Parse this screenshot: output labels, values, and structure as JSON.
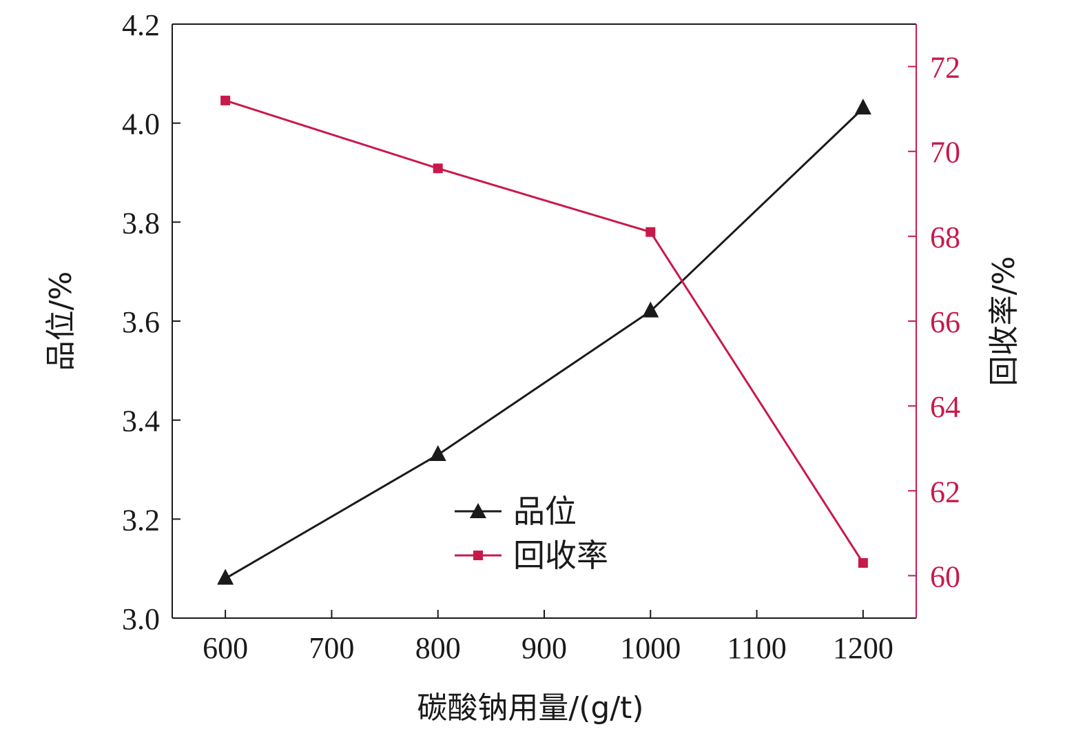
{
  "chart_data": {
    "type": "line",
    "xlabel": "碳酸钠用量/(g/t)",
    "ylabel_left": "品位/%",
    "ylabel_right": "回收率/%",
    "x_ticks": [
      600,
      700,
      800,
      900,
      1000,
      1100,
      1200
    ],
    "xlim": [
      550,
      1250
    ],
    "y_left_ticks": [
      "3.0",
      "3.2",
      "3.4",
      "3.6",
      "3.8",
      "4.0",
      "4.2"
    ],
    "ylim_left": [
      3.0,
      4.2
    ],
    "y_right_ticks": [
      "60",
      "62",
      "64",
      "66",
      "68",
      "70",
      "72"
    ],
    "ylim_right": [
      59,
      73
    ],
    "x": [
      600,
      800,
      1000,
      1200
    ],
    "series": [
      {
        "name": "品位",
        "axis": "left",
        "marker": "triangle",
        "color": "#1a1a1a",
        "values": [
          3.08,
          3.33,
          3.62,
          4.03
        ]
      },
      {
        "name": "回收率",
        "axis": "right",
        "marker": "square",
        "color": "#c8194b",
        "values": [
          71.2,
          69.6,
          68.1,
          60.3
        ]
      }
    ],
    "legend_position": "bottom-center",
    "grid": false,
    "right_axis_color": "#c8194b",
    "left_axis_color": "#1a1a1a"
  }
}
